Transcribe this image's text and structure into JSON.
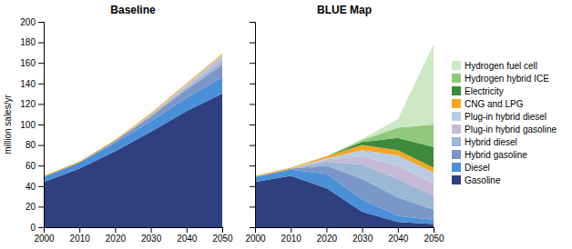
{
  "chart_data": [
    {
      "type": "area",
      "stacked": true,
      "title": "Baseline",
      "ylabel": "million sales/yr",
      "x": [
        2000,
        2010,
        2020,
        2030,
        2040,
        2050
      ],
      "xlim": [
        2000,
        2050
      ],
      "xticks": [
        2000,
        2010,
        2020,
        2030,
        2040,
        2050
      ],
      "ylim": [
        0,
        200
      ],
      "yticks": [
        0,
        20,
        40,
        60,
        80,
        100,
        120,
        140,
        160,
        180,
        200
      ],
      "grid": false,
      "legend": "right",
      "series": [
        {
          "name": "Gasoline",
          "color": "#2e4080",
          "values": [
            44,
            57,
            74,
            93,
            113,
            130
          ]
        },
        {
          "name": "Diesel",
          "color": "#4a90d9",
          "values": [
            5,
            6,
            8,
            10,
            13,
            16
          ]
        },
        {
          "name": "Hybrid gasoline",
          "color": "#7b96c8",
          "values": [
            0,
            0,
            2,
            5,
            8,
            12
          ]
        },
        {
          "name": "Hybrid diesel",
          "color": "#9bb7d4",
          "values": [
            0,
            0,
            0,
            1,
            2,
            4
          ]
        },
        {
          "name": "Plug-in hybrid gasoline",
          "color": "#c5b9d6",
          "values": [
            0,
            0,
            0,
            1,
            2,
            4
          ]
        },
        {
          "name": "Plug-in hybrid diesel",
          "color": "#b8cce4",
          "values": [
            0,
            0,
            0,
            0,
            1,
            2
          ]
        },
        {
          "name": "CNG and LPG",
          "color": "#f5a623",
          "values": [
            1,
            1,
            1,
            1,
            1,
            1
          ]
        },
        {
          "name": "Electricity",
          "color": "#3d8a3a",
          "values": [
            0,
            0,
            0,
            0,
            0,
            0
          ]
        },
        {
          "name": "Hydrogen hybrid ICE",
          "color": "#90c97a",
          "values": [
            0,
            0,
            0,
            0,
            0,
            0
          ]
        },
        {
          "name": "Hydrogen fuel cell",
          "color": "#cce8c4",
          "values": [
            0,
            0,
            0,
            0,
            0,
            0
          ]
        }
      ]
    },
    {
      "type": "area",
      "stacked": true,
      "title": "BLUE Map",
      "x": [
        2000,
        2010,
        2020,
        2030,
        2040,
        2050
      ],
      "xlim": [
        2000,
        2050
      ],
      "xticks": [
        2000,
        2010,
        2020,
        2030,
        2040,
        2050
      ],
      "ylim": [
        0,
        200
      ],
      "yticks": [
        0,
        20,
        40,
        60,
        80,
        100,
        120,
        140,
        160,
        180,
        200
      ],
      "grid": false,
      "tick_labels": "x",
      "series": [
        {
          "name": "Gasoline",
          "color": "#2e4080",
          "values": [
            44,
            50,
            38,
            15,
            5,
            3
          ]
        },
        {
          "name": "Diesel",
          "color": "#4a90d9",
          "values": [
            5,
            6,
            14,
            12,
            6,
            4
          ]
        },
        {
          "name": "Hybrid gasoline",
          "color": "#7b96c8",
          "values": [
            0,
            1,
            8,
            20,
            18,
            10
          ]
        },
        {
          "name": "Hybrid diesel",
          "color": "#9bb7d4",
          "values": [
            0,
            0,
            4,
            14,
            18,
            14
          ]
        },
        {
          "name": "Plug-in hybrid gasoline",
          "color": "#c5b9d6",
          "values": [
            0,
            0,
            2,
            8,
            13,
            12
          ]
        },
        {
          "name": "Plug-in hybrid diesel",
          "color": "#b8cce4",
          "values": [
            0,
            0,
            1,
            6,
            10,
            10
          ]
        },
        {
          "name": "CNG and LPG",
          "color": "#f5a623",
          "values": [
            1,
            1,
            2,
            5,
            5,
            5
          ]
        },
        {
          "name": "Electricity",
          "color": "#3d8a3a",
          "values": [
            0,
            0,
            0,
            3,
            12,
            20
          ]
        },
        {
          "name": "Hydrogen hybrid ICE",
          "color": "#90c97a",
          "values": [
            0,
            0,
            0,
            2,
            10,
            22
          ]
        },
        {
          "name": "Hydrogen fuel cell",
          "color": "#cce8c4",
          "values": [
            0,
            0,
            0,
            1,
            8,
            78
          ]
        }
      ]
    }
  ]
}
